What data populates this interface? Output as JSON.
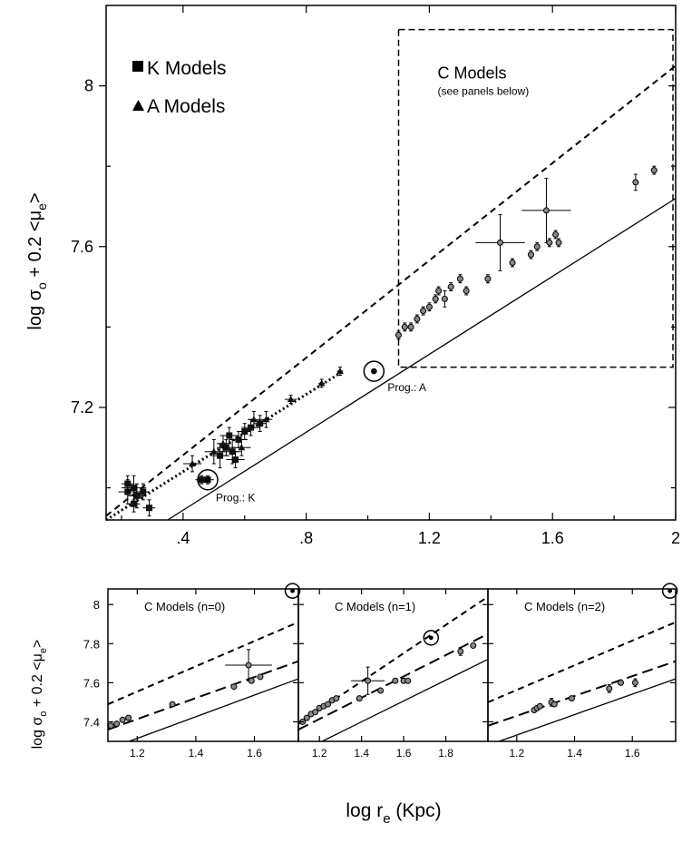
{
  "chart_data": [
    {
      "type": "scatter",
      "id": "main",
      "ylabel": {
        "base": "log σ",
        "sub1": "o",
        "mid": " + 0.2 <μ",
        "sub2": "e",
        "end": ">"
      },
      "xlim": [
        0.15,
        2.0
      ],
      "ylim": [
        6.92,
        8.2
      ],
      "xticks": [
        0.4,
        0.8,
        1.2,
        1.6,
        2.0
      ],
      "xtick_labels": [
        ".4",
        ".8",
        "1.2",
        "1.6",
        "2"
      ],
      "yticks": [
        7.2,
        7.6,
        8.0
      ],
      "ytick_labels": [
        "7.2",
        "7.6",
        "8"
      ],
      "legend": [
        {
          "marker": "square",
          "label": "K Models"
        },
        {
          "marker": "triangle",
          "label": "A Models"
        }
      ],
      "box": {
        "x": [
          1.1,
          2.0
        ],
        "y": [
          7.3,
          8.14
        ],
        "label": "C Models",
        "sublabel": "(see panels below)"
      },
      "lines": [
        {
          "style": "dashed",
          "p1": [
            0.15,
            6.93
          ],
          "p2": [
            2.0,
            8.05
          ]
        },
        {
          "style": "dotted",
          "p1": [
            0.15,
            6.92
          ],
          "p2": [
            0.92,
            7.29
          ]
        },
        {
          "style": "solid",
          "p1": [
            0.35,
            6.92
          ],
          "p2": [
            2.0,
            7.72
          ]
        }
      ],
      "progenitors": [
        {
          "label": "Prog.: K",
          "x": 0.48,
          "y": 7.02
        },
        {
          "label": "Prog.: A",
          "x": 1.02,
          "y": 7.29
        }
      ],
      "k_models": [
        [
          0.22,
          6.99,
          0.03,
          0.03
        ],
        [
          0.24,
          7.0,
          0.04,
          0.03
        ],
        [
          0.25,
          6.98,
          0.03,
          0.03
        ],
        [
          0.22,
          7.01,
          0.02,
          0.02
        ],
        [
          0.27,
          6.99,
          0.02,
          0.02
        ],
        [
          0.29,
          6.95,
          0.02,
          0.02
        ],
        [
          0.24,
          6.96,
          0.02,
          0.02
        ],
        [
          0.46,
          7.02,
          0.02,
          0.01
        ],
        [
          0.48,
          7.02,
          0.02,
          0.01
        ],
        [
          0.52,
          7.08,
          0.03,
          0.03
        ],
        [
          0.54,
          7.1,
          0.03,
          0.02
        ],
        [
          0.56,
          7.09,
          0.03,
          0.03
        ],
        [
          0.58,
          7.12,
          0.03,
          0.02
        ],
        [
          0.6,
          7.14,
          0.02,
          0.02
        ],
        [
          0.62,
          7.15,
          0.03,
          0.02
        ],
        [
          0.55,
          7.13,
          0.03,
          0.02
        ],
        [
          0.57,
          7.07,
          0.03,
          0.02
        ],
        [
          0.65,
          7.16,
          0.02,
          0.02
        ]
      ],
      "a_models": [
        [
          0.43,
          7.06,
          0.03,
          0.02
        ],
        [
          0.5,
          7.09,
          0.03,
          0.03
        ],
        [
          0.53,
          7.11,
          0.02,
          0.02
        ],
        [
          0.59,
          7.1,
          0.03,
          0.02
        ],
        [
          0.63,
          7.17,
          0.02,
          0.02
        ],
        [
          0.67,
          7.17,
          0.02,
          0.02
        ],
        [
          0.75,
          7.22,
          0.02,
          0.01
        ],
        [
          0.85,
          7.26,
          0.01,
          0.01
        ],
        [
          0.91,
          7.29,
          0.01,
          0.01
        ]
      ],
      "c_models": [
        [
          1.1,
          7.38,
          0.01,
          0.01
        ],
        [
          1.12,
          7.4,
          0.01,
          0.01
        ],
        [
          1.14,
          7.4,
          0.01,
          0.01
        ],
        [
          1.16,
          7.42,
          0.01,
          0.01
        ],
        [
          1.18,
          7.44,
          0.01,
          0.01
        ],
        [
          1.2,
          7.45,
          0.01,
          0.01
        ],
        [
          1.22,
          7.47,
          0.01,
          0.01
        ],
        [
          1.23,
          7.49,
          0.01,
          0.01
        ],
        [
          1.25,
          7.47,
          0.01,
          0.02
        ],
        [
          1.27,
          7.5,
          0.01,
          0.01
        ],
        [
          1.3,
          7.52,
          0.01,
          0.01
        ],
        [
          1.32,
          7.49,
          0.01,
          0.01
        ],
        [
          1.39,
          7.52,
          0.01,
          0.01
        ],
        [
          1.43,
          7.61,
          0.08,
          0.07
        ],
        [
          1.47,
          7.56,
          0.01,
          0.01
        ],
        [
          1.53,
          7.58,
          0.01,
          0.01
        ],
        [
          1.55,
          7.6,
          0.01,
          0.01
        ],
        [
          1.58,
          7.69,
          0.08,
          0.08
        ],
        [
          1.59,
          7.61,
          0.01,
          0.01
        ],
        [
          1.62,
          7.61,
          0.01,
          0.01
        ],
        [
          1.61,
          7.63,
          0.01,
          0.01
        ],
        [
          1.87,
          7.76,
          0.01,
          0.02
        ],
        [
          1.93,
          7.79,
          0.01,
          0.01
        ]
      ]
    },
    {
      "type": "scatter",
      "id": "n0",
      "title": "C Models (n=0)",
      "xlim": [
        1.1,
        1.75
      ],
      "ylim": [
        7.3,
        8.08
      ],
      "xticks": [
        1.2,
        1.4,
        1.6
      ],
      "xtick_labels": [
        "1.2",
        "1.4",
        "1.6"
      ],
      "yticks": [
        7.4,
        7.6,
        7.8,
        8.0
      ],
      "ytick_labels": [
        "7.4",
        "7.6",
        "7.8",
        "8"
      ],
      "sun": [
        1.73,
        8.07
      ],
      "lines": [
        {
          "style": "dashed",
          "p1": [
            1.1,
            7.49
          ],
          "p2": [
            1.75,
            7.91
          ]
        },
        {
          "style": "longdash",
          "p1": [
            1.1,
            7.36
          ],
          "p2": [
            1.75,
            7.71
          ]
        },
        {
          "style": "solid",
          "p1": [
            1.1,
            7.26
          ],
          "p2": [
            1.75,
            7.62
          ]
        }
      ],
      "points": [
        [
          1.11,
          7.38,
          0.01,
          0.01
        ],
        [
          1.13,
          7.39,
          0.01,
          0.01
        ],
        [
          1.15,
          7.41,
          0.01,
          0.01
        ],
        [
          1.17,
          7.42,
          0.01,
          0.01
        ],
        [
          1.32,
          7.49,
          0.01,
          0.01
        ],
        [
          1.53,
          7.58,
          0.01,
          0.01
        ],
        [
          1.58,
          7.69,
          0.08,
          0.08
        ],
        [
          1.59,
          7.61,
          0.01,
          0.01
        ],
        [
          1.62,
          7.63,
          0.01,
          0.01
        ]
      ]
    },
    {
      "type": "scatter",
      "id": "n1",
      "title": "C Models (n=1)",
      "xlim": [
        1.1,
        2.0
      ],
      "ylim": [
        7.3,
        8.08
      ],
      "xticks": [
        1.2,
        1.4,
        1.6,
        1.8
      ],
      "xtick_labels": [
        "1.2",
        "1.4",
        "1.6",
        "1.8"
      ],
      "sun": [
        1.73,
        7.83
      ],
      "lines": [
        {
          "style": "dashed",
          "p1": [
            1.1,
            7.39
          ],
          "p2": [
            2.0,
            8.04
          ]
        },
        {
          "style": "longdash",
          "p1": [
            1.1,
            7.36
          ],
          "p2": [
            2.0,
            7.85
          ]
        },
        {
          "style": "solid",
          "p1": [
            1.1,
            7.24
          ],
          "p2": [
            2.0,
            7.72
          ]
        }
      ],
      "points": [
        [
          1.12,
          7.4,
          0.01,
          0.01
        ],
        [
          1.14,
          7.42,
          0.01,
          0.01
        ],
        [
          1.16,
          7.44,
          0.01,
          0.01
        ],
        [
          1.18,
          7.45,
          0.01,
          0.01
        ],
        [
          1.2,
          7.47,
          0.01,
          0.01
        ],
        [
          1.22,
          7.48,
          0.01,
          0.01
        ],
        [
          1.24,
          7.49,
          0.01,
          0.01
        ],
        [
          1.26,
          7.51,
          0.01,
          0.01
        ],
        [
          1.28,
          7.52,
          0.01,
          0.01
        ],
        [
          1.39,
          7.52,
          0.01,
          0.01
        ],
        [
          1.43,
          7.61,
          0.08,
          0.07
        ],
        [
          1.49,
          7.56,
          0.01,
          0.01
        ],
        [
          1.56,
          7.61,
          0.01,
          0.01
        ],
        [
          1.6,
          7.61,
          0.01,
          0.01
        ],
        [
          1.62,
          7.61,
          0.01,
          0.01
        ],
        [
          1.87,
          7.76,
          0.01,
          0.02
        ],
        [
          1.93,
          7.79,
          0.01,
          0.01
        ]
      ]
    },
    {
      "type": "scatter",
      "id": "n2",
      "title": "C Models (n=2)",
      "xlim": [
        1.1,
        1.75
      ],
      "ylim": [
        7.3,
        8.08
      ],
      "xticks": [
        1.2,
        1.4,
        1.6
      ],
      "xtick_labels": [
        "1.2",
        "1.4",
        "1.6"
      ],
      "sun": [
        1.73,
        8.07
      ],
      "lines": [
        {
          "style": "dashed",
          "p1": [
            1.1,
            7.5
          ],
          "p2": [
            1.75,
            7.91
          ]
        },
        {
          "style": "longdash",
          "p1": [
            1.1,
            7.38
          ],
          "p2": [
            1.75,
            7.71
          ]
        },
        {
          "style": "solid",
          "p1": [
            1.1,
            7.28
          ],
          "p2": [
            1.75,
            7.62
          ]
        }
      ],
      "points": [
        [
          1.26,
          7.46,
          0.01,
          0.01
        ],
        [
          1.27,
          7.47,
          0.01,
          0.01
        ],
        [
          1.28,
          7.48,
          0.01,
          0.01
        ],
        [
          1.32,
          7.5,
          0.01,
          0.02
        ],
        [
          1.33,
          7.49,
          0.01,
          0.01
        ],
        [
          1.39,
          7.52,
          0.01,
          0.01
        ],
        [
          1.52,
          7.57,
          0.01,
          0.02
        ],
        [
          1.56,
          7.6,
          0.01,
          0.01
        ],
        [
          1.61,
          7.6,
          0.01,
          0.02
        ]
      ]
    }
  ],
  "shared_xlabel": {
    "base": "log r",
    "sub": "e",
    "end": " (Kpc)"
  },
  "bottom_ylabel": {
    "base": "log σ",
    "sub1": "o",
    "mid": " + 0.2 <μ",
    "sub2": "e",
    "end": ">"
  }
}
